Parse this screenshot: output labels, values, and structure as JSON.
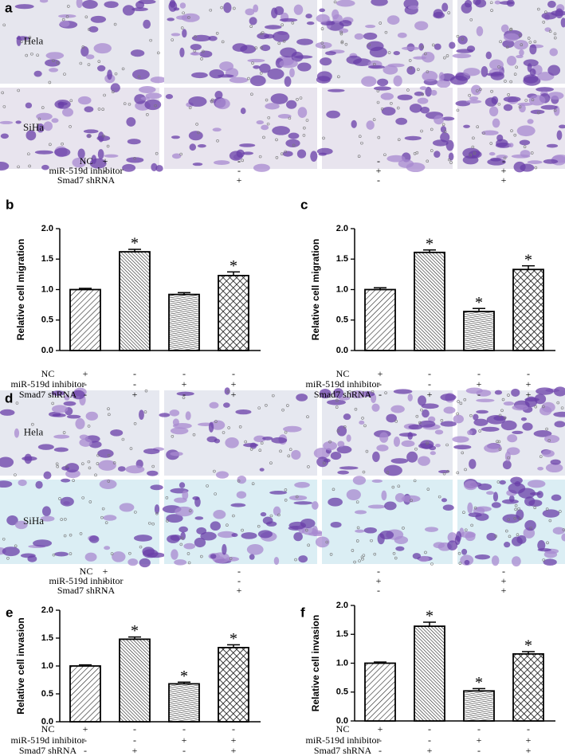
{
  "panel_a": {
    "letter": "a",
    "row_labels": [
      "Hela",
      "SiHa"
    ],
    "conditions": [
      {
        "name": "NC",
        "signs": [
          "+",
          "-",
          "-",
          "-"
        ]
      },
      {
        "name": "miR-519d inhibitor",
        "signs": [
          "-",
          "-",
          "+",
          "+"
        ]
      },
      {
        "name": "Smad7 shRNA",
        "signs": [
          "-",
          "+",
          "-",
          "+"
        ]
      }
    ]
  },
  "panel_d": {
    "letter": "d",
    "row_labels": [
      "Hela",
      "SiHa"
    ],
    "conditions": [
      {
        "name": "NC",
        "signs": [
          "+",
          "-",
          "-",
          "-"
        ]
      },
      {
        "name": "miR-519d inhibitor",
        "signs": [
          "-",
          "-",
          "+",
          "+"
        ]
      },
      {
        "name": "Smad7 shRNA",
        "signs": [
          "-",
          "+",
          "-",
          "+"
        ]
      }
    ]
  },
  "chart_data": [
    {
      "type": "bar",
      "letter": "b",
      "ylabel": "Relative cell migration",
      "values": [
        1.0,
        1.62,
        0.92,
        1.23
      ],
      "errors": [
        0.02,
        0.04,
        0.03,
        0.06
      ],
      "significance": [
        null,
        "*",
        null,
        "*"
      ],
      "ylim": [
        0,
        2.0
      ],
      "yticks": [
        {
          "value": 0,
          "label": "0.0"
        },
        {
          "value": 0.5,
          "label": "0.5"
        },
        {
          "value": 1.0,
          "label": "1.0"
        },
        {
          "value": 1.5,
          "label": "1.5"
        },
        {
          "value": 2.0,
          "label": "2.0"
        }
      ],
      "conditions": [
        {
          "name": "NC",
          "signs": [
            "+",
            "-",
            "-",
            "-"
          ]
        },
        {
          "name": "miR-519d inhibitor",
          "signs": [
            "-",
            "-",
            "+",
            "+"
          ]
        },
        {
          "name": "Smad7 shRNA",
          "signs": [
            "-",
            "+",
            "-",
            "+"
          ]
        }
      ]
    },
    {
      "type": "bar",
      "letter": "c",
      "ylabel": "Relative cell migration",
      "values": [
        1.0,
        1.61,
        0.64,
        1.33
      ],
      "errors": [
        0.03,
        0.04,
        0.05,
        0.06
      ],
      "significance": [
        null,
        "*",
        "*",
        "*"
      ],
      "ylim": [
        0,
        2.0
      ],
      "yticks": [
        {
          "value": 0,
          "label": "0.0"
        },
        {
          "value": 0.5,
          "label": "0.5"
        },
        {
          "value": 1.0,
          "label": "1.0"
        },
        {
          "value": 1.5,
          "label": "1.5"
        },
        {
          "value": 2.0,
          "label": "2.0"
        }
      ],
      "conditions": [
        {
          "name": "NC",
          "signs": [
            "+",
            "-",
            "-",
            "-"
          ]
        },
        {
          "name": "miR-519d inhibitor",
          "signs": [
            "-",
            "-",
            "+",
            "+"
          ]
        },
        {
          "name": "Smad7 shRNA",
          "signs": [
            "-",
            "+",
            "-",
            "+"
          ]
        }
      ]
    },
    {
      "type": "bar",
      "letter": "e",
      "ylabel": "Relative cell invasion",
      "values": [
        1.0,
        1.48,
        0.68,
        1.33
      ],
      "errors": [
        0.02,
        0.04,
        0.03,
        0.05
      ],
      "significance": [
        null,
        "*",
        "*",
        "*"
      ],
      "ylim": [
        0,
        2.0
      ],
      "yticks": [
        {
          "value": 0,
          "label": "0.0"
        },
        {
          "value": 0.5,
          "label": "0.5"
        },
        {
          "value": 1.0,
          "label": "1.0"
        },
        {
          "value": 1.5,
          "label": "1.5"
        },
        {
          "value": 2.0,
          "label": "2.0"
        }
      ],
      "conditions": [
        {
          "name": "NC",
          "signs": [
            "+",
            "-",
            "-",
            "-"
          ]
        },
        {
          "name": "miR-519d inhibitor",
          "signs": [
            "-",
            "-",
            "+",
            "+"
          ]
        },
        {
          "name": "Smad7 shRNA",
          "signs": [
            "-",
            "+",
            "-",
            "+"
          ]
        }
      ]
    },
    {
      "type": "bar",
      "letter": "f",
      "ylabel": "Relative cell invasion",
      "values": [
        1.0,
        1.64,
        0.52,
        1.16
      ],
      "errors": [
        0.02,
        0.07,
        0.04,
        0.04
      ],
      "significance": [
        null,
        "*",
        "*",
        "*"
      ],
      "ylim": [
        0,
        2.0
      ],
      "yticks": [
        {
          "value": 0,
          "label": "0.0"
        },
        {
          "value": 0.5,
          "label": "0.5"
        },
        {
          "value": 1.0,
          "label": "1.0"
        },
        {
          "value": 1.5,
          "label": "1.5"
        },
        {
          "value": 2.0,
          "label": "2.0"
        }
      ],
      "conditions": [
        {
          "name": "NC",
          "signs": [
            "+",
            "-",
            "-",
            "-"
          ]
        },
        {
          "name": "miR-519d inhibitor",
          "signs": [
            "-",
            "-",
            "+",
            "+"
          ]
        },
        {
          "name": "Smad7 shRNA",
          "signs": [
            "-",
            "+",
            "-",
            "+"
          ]
        }
      ]
    }
  ]
}
